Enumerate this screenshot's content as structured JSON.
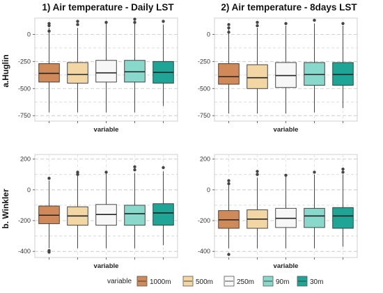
{
  "figure": {
    "col_titles": [
      "1) Air temperature - Daily LST",
      "2)  Air temperature - 8days LST"
    ],
    "row_titles": [
      "a.Huglin",
      "b. Winkler"
    ]
  },
  "legend": {
    "title": "variable",
    "entries": [
      {
        "label": "1000m",
        "color": "#d08a5a"
      },
      {
        "label": "500m",
        "color": "#f2d6a4"
      },
      {
        "label": "250m",
        "color": "#f7f7f7"
      },
      {
        "label": "90m",
        "color": "#88d8cc"
      },
      {
        "label": "30m",
        "color": "#1fa595"
      }
    ]
  },
  "chart_data": [
    {
      "type": "boxplot",
      "panel": "a.Huglin / Daily LST",
      "xlabel": "variable",
      "ylabel": "",
      "ylim": [
        -800,
        150
      ],
      "yticks": [
        0,
        -250,
        -500,
        -750
      ],
      "ytick_labels": [
        "0",
        "-250",
        "-500",
        "-750"
      ],
      "categories": [
        "1000m",
        "500m",
        "250m",
        "90m",
        "30m"
      ],
      "boxes": [
        {
          "name": "1000m",
          "min": -720,
          "q1": -440,
          "median": -360,
          "q3": -270,
          "max": 60,
          "outliers": [
            80,
            100,
            30
          ]
        },
        {
          "name": "500m",
          "min": -720,
          "q1": -450,
          "median": -370,
          "q3": -260,
          "max": 60,
          "outliers": [
            90,
            120
          ]
        },
        {
          "name": "250m",
          "min": -720,
          "q1": -440,
          "median": -355,
          "q3": -240,
          "max": 100,
          "outliers": [
            110
          ]
        },
        {
          "name": "90m",
          "min": -720,
          "q1": -440,
          "median": -345,
          "q3": -240,
          "max": 100,
          "outliers": [
            110,
            140
          ]
        },
        {
          "name": "30m",
          "min": -660,
          "q1": -450,
          "median": -350,
          "q3": -250,
          "max": 90,
          "outliers": [
            120
          ]
        }
      ]
    },
    {
      "type": "boxplot",
      "panel": "a.Huglin / 8days LST",
      "xlabel": "variable",
      "ylabel": "",
      "ylim": [
        -800,
        150
      ],
      "yticks": [
        0,
        -250,
        -500,
        -750
      ],
      "ytick_labels": [
        "0",
        "-250",
        "-500",
        "-750"
      ],
      "categories": [
        "1000m",
        "500m",
        "250m",
        "90m",
        "30m"
      ],
      "boxes": [
        {
          "name": "1000m",
          "min": -730,
          "q1": -460,
          "median": -390,
          "q3": -270,
          "max": 50,
          "outliers": [
            60,
            90,
            20
          ]
        },
        {
          "name": "500m",
          "min": -730,
          "q1": -500,
          "median": -400,
          "q3": -280,
          "max": 60,
          "outliers": [
            80,
            110
          ]
        },
        {
          "name": "250m",
          "min": -730,
          "q1": -490,
          "median": -380,
          "q3": -260,
          "max": 80,
          "outliers": [
            100
          ]
        },
        {
          "name": "90m",
          "min": -720,
          "q1": -470,
          "median": -370,
          "q3": -260,
          "max": 100,
          "outliers": [
            130
          ]
        },
        {
          "name": "30m",
          "min": -680,
          "q1": -470,
          "median": -370,
          "q3": -260,
          "max": 80,
          "outliers": [
            100
          ]
        }
      ]
    },
    {
      "type": "boxplot",
      "panel": "b. Winkler / Daily LST",
      "xlabel": "variable",
      "ylabel": "",
      "ylim": [
        -440,
        230
      ],
      "yticks": [
        200,
        0,
        -200,
        -400
      ],
      "ytick_labels": [
        "200",
        "0",
        "-200",
        "-400"
      ],
      "categories": [
        "1000m",
        "500m",
        "250m",
        "90m",
        "30m"
      ],
      "boxes": [
        {
          "name": "1000m",
          "min": -380,
          "q1": -220,
          "median": -165,
          "q3": -105,
          "max": 60,
          "outliers": [
            75,
            -395,
            -405
          ]
        },
        {
          "name": "500m",
          "min": -380,
          "q1": -230,
          "median": -170,
          "q3": -110,
          "max": 90,
          "outliers": [
            100,
            115
          ]
        },
        {
          "name": "250m",
          "min": -380,
          "q1": -230,
          "median": -160,
          "q3": -95,
          "max": 110,
          "outliers": [
            115
          ]
        },
        {
          "name": "90m",
          "min": -380,
          "q1": -230,
          "median": -155,
          "q3": -100,
          "max": 110,
          "outliers": [
            130,
            150
          ]
        },
        {
          "name": "30m",
          "min": -360,
          "q1": -230,
          "median": -150,
          "q3": -90,
          "max": 120,
          "outliers": [
            145
          ]
        }
      ]
    },
    {
      "type": "boxplot",
      "panel": "b. Winkler / 8days LST",
      "xlabel": "variable",
      "ylabel": "",
      "ylim": [
        -440,
        230
      ],
      "yticks": [
        200,
        0,
        -200,
        -400
      ],
      "ytick_labels": [
        "200",
        "0",
        "-200",
        "-400"
      ],
      "categories": [
        "1000m",
        "500m",
        "250m",
        "90m",
        "30m"
      ],
      "boxes": [
        {
          "name": "1000m",
          "min": -380,
          "q1": -250,
          "median": -195,
          "q3": -135,
          "max": 30,
          "outliers": [
            40,
            60,
            -420
          ]
        },
        {
          "name": "500m",
          "min": -380,
          "q1": -250,
          "median": -190,
          "q3": -130,
          "max": 80,
          "outliers": [
            100,
            120
          ]
        },
        {
          "name": "250m",
          "min": -380,
          "q1": -245,
          "median": -185,
          "q3": -120,
          "max": 85,
          "outliers": [
            95
          ]
        },
        {
          "name": "90m",
          "min": -380,
          "q1": -245,
          "median": -170,
          "q3": -120,
          "max": 100,
          "outliers": [
            115
          ]
        },
        {
          "name": "30m",
          "min": -370,
          "q1": -250,
          "median": -170,
          "q3": -115,
          "max": 100,
          "outliers": [
            115,
            135
          ]
        }
      ]
    }
  ]
}
